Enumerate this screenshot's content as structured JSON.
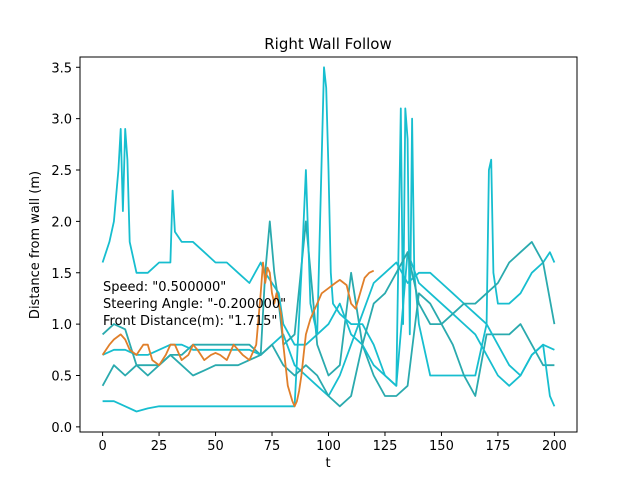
{
  "chart_data": {
    "type": "line",
    "title": "Right Wall Follow",
    "xlabel": "t",
    "ylabel": "Distance from wall (m)",
    "xlim": [
      -10,
      210
    ],
    "ylim": [
      -0.05,
      3.6
    ],
    "xticks": [
      0,
      25,
      50,
      75,
      100,
      125,
      150,
      175,
      200
    ],
    "yticks": [
      0.0,
      0.5,
      1.0,
      1.5,
      2.0,
      2.5,
      3.0,
      3.5
    ],
    "ytick_labels": [
      "0.0",
      "0.5",
      "1.0",
      "1.5",
      "2.0",
      "2.5",
      "3.0",
      "3.5"
    ],
    "grid": false,
    "annotations": [
      "Speed: \"0.500000\"",
      "Steering Angle: \"-0.200000\"",
      "Front Distance(m): \"1.715\""
    ],
    "colors": {
      "cyan": "#17becf",
      "teal": "#2aaaae",
      "orange": "#e07f2a"
    },
    "series": [
      {
        "color": "#17becf",
        "x": [
          0,
          3,
          5,
          7,
          8,
          9,
          10,
          11,
          12,
          15,
          20,
          25,
          30,
          31,
          32,
          35,
          40,
          45,
          50,
          55,
          60,
          65,
          70,
          72,
          75,
          78,
          80,
          85,
          90,
          95,
          98,
          99,
          100,
          101,
          102,
          105,
          110,
          115,
          120,
          125,
          130,
          132,
          133,
          134,
          135,
          136,
          137,
          138,
          140,
          145,
          150,
          155,
          160,
          165,
          170,
          171,
          172,
          173,
          175,
          180,
          185,
          190,
          195,
          198,
          200
        ],
        "y": [
          1.6,
          1.8,
          2.0,
          2.5,
          2.9,
          2.1,
          2.9,
          2.6,
          1.8,
          1.5,
          1.5,
          1.6,
          1.6,
          2.3,
          1.9,
          1.8,
          1.8,
          1.7,
          1.6,
          1.6,
          1.5,
          1.4,
          1.6,
          1.5,
          1.4,
          1.3,
          1.0,
          0.8,
          0.8,
          0.9,
          3.5,
          3.3,
          2.5,
          1.5,
          1.2,
          1.1,
          1.0,
          1.0,
          0.8,
          0.5,
          0.4,
          3.1,
          1.0,
          3.1,
          2.8,
          0.9,
          3.0,
          1.5,
          1.0,
          0.5,
          0.5,
          0.5,
          0.5,
          0.5,
          1.0,
          2.5,
          2.6,
          1.5,
          1.2,
          1.2,
          1.3,
          1.5,
          1.6,
          1.7,
          1.6
        ]
      },
      {
        "color": "#2aaaae",
        "x": [
          0,
          5,
          10,
          15,
          20,
          25,
          30,
          35,
          40,
          45,
          50,
          55,
          60,
          65,
          70,
          72,
          74,
          76,
          78,
          80,
          85,
          90,
          95,
          100,
          105,
          110,
          115,
          120,
          125,
          130,
          135,
          140,
          145,
          150,
          155,
          160,
          165,
          170,
          175,
          180,
          185,
          190,
          195,
          200
        ],
        "y": [
          0.4,
          0.6,
          0.5,
          0.6,
          0.6,
          0.6,
          0.7,
          0.7,
          0.8,
          0.8,
          0.8,
          0.8,
          0.8,
          0.8,
          0.7,
          1.5,
          2.0,
          1.5,
          1.2,
          0.8,
          0.9,
          2.0,
          0.8,
          0.5,
          0.6,
          1.5,
          0.8,
          0.5,
          0.3,
          0.3,
          0.4,
          1.3,
          1.2,
          1.0,
          0.8,
          0.5,
          0.3,
          0.9,
          0.9,
          0.9,
          1.0,
          0.8,
          0.6,
          0.6
        ]
      },
      {
        "color": "#17becf",
        "x": [
          0,
          5,
          10,
          15,
          20,
          25,
          30,
          35,
          40,
          45,
          50,
          55,
          60,
          65,
          70,
          75,
          80,
          85,
          88,
          90,
          92,
          95,
          100,
          105,
          110,
          115,
          120,
          125,
          130,
          135,
          140,
          145,
          150,
          155,
          160,
          165,
          170,
          175,
          180,
          185,
          190,
          195,
          200
        ],
        "y": [
          0.25,
          0.25,
          0.2,
          0.15,
          0.18,
          0.2,
          0.2,
          0.2,
          0.2,
          0.2,
          0.2,
          0.2,
          0.2,
          0.2,
          0.2,
          0.2,
          0.2,
          0.2,
          1.5,
          2.5,
          1.2,
          0.9,
          1.0,
          1.2,
          0.9,
          0.8,
          0.6,
          0.5,
          0.4,
          1.7,
          1.4,
          1.3,
          1.2,
          1.1,
          1.0,
          0.9,
          0.7,
          0.5,
          0.4,
          0.5,
          0.7,
          0.8,
          0.75
        ]
      },
      {
        "color": "#17becf",
        "x": [
          0,
          5,
          10,
          15,
          20,
          25,
          30,
          35,
          40,
          45,
          50,
          55,
          60,
          65,
          70,
          75,
          80,
          85,
          90,
          95,
          100,
          105,
          110,
          115,
          120,
          125,
          130,
          135,
          140,
          145,
          150,
          155,
          160,
          165,
          170,
          175,
          180,
          185,
          190,
          195,
          198,
          200
        ],
        "y": [
          0.7,
          0.75,
          0.75,
          0.7,
          0.7,
          0.75,
          0.8,
          0.8,
          0.75,
          0.75,
          0.75,
          0.75,
          0.75,
          0.75,
          0.7,
          0.8,
          0.9,
          0.6,
          0.5,
          0.4,
          0.3,
          0.5,
          0.8,
          1.1,
          1.4,
          1.5,
          1.6,
          1.4,
          1.5,
          1.5,
          1.4,
          1.3,
          1.2,
          1.1,
          1.0,
          0.8,
          0.6,
          0.5,
          0.7,
          0.8,
          0.3,
          0.2
        ]
      },
      {
        "color": "#2aaaae",
        "x": [
          0,
          5,
          10,
          15,
          20,
          25,
          30,
          35,
          40,
          45,
          50,
          55,
          60,
          65,
          70,
          75,
          80,
          85,
          90,
          95,
          100,
          105,
          110,
          115,
          120,
          125,
          130,
          135,
          140,
          145,
          150,
          155,
          160,
          165,
          170,
          175,
          180,
          185,
          190,
          195,
          200
        ],
        "y": [
          0.9,
          1.0,
          0.95,
          0.6,
          0.5,
          0.6,
          0.7,
          0.6,
          0.5,
          0.55,
          0.6,
          0.6,
          0.6,
          0.65,
          0.7,
          0.8,
          0.6,
          0.5,
          0.6,
          0.5,
          0.3,
          0.2,
          0.3,
          0.8,
          1.2,
          1.3,
          1.5,
          1.7,
          1.2,
          1.0,
          1.0,
          1.1,
          1.2,
          1.2,
          1.3,
          1.4,
          1.6,
          1.7,
          1.8,
          1.6,
          1.0
        ]
      },
      {
        "color": "#e07f2a",
        "x": [
          0,
          3,
          5,
          8,
          10,
          12,
          15,
          18,
          20,
          22,
          25,
          28,
          30,
          32,
          35,
          38,
          40,
          42,
          45,
          48,
          50,
          52,
          55,
          58,
          60,
          62,
          65,
          68,
          70,
          71,
          72,
          73,
          74,
          75,
          76,
          77,
          78,
          79,
          80,
          82,
          84,
          85,
          86,
          87,
          88,
          89,
          90,
          92,
          94,
          95,
          97,
          100,
          103,
          105,
          108,
          110,
          112,
          114,
          116,
          118,
          120
        ],
        "y": [
          0.7,
          0.8,
          0.85,
          0.9,
          0.85,
          0.75,
          0.7,
          0.8,
          0.8,
          0.65,
          0.6,
          0.7,
          0.8,
          0.8,
          0.65,
          0.7,
          0.8,
          0.75,
          0.65,
          0.7,
          0.72,
          0.7,
          0.65,
          0.8,
          0.75,
          0.7,
          0.65,
          0.8,
          1.3,
          1.6,
          1.4,
          1.55,
          1.5,
          1.3,
          1.2,
          1.3,
          1.2,
          1.1,
          0.8,
          0.4,
          0.25,
          0.2,
          0.25,
          0.35,
          0.5,
          0.7,
          0.9,
          1.05,
          1.15,
          1.2,
          1.3,
          1.35,
          1.4,
          1.43,
          1.38,
          1.2,
          1.15,
          1.3,
          1.45,
          1.5,
          1.52
        ]
      }
    ]
  }
}
